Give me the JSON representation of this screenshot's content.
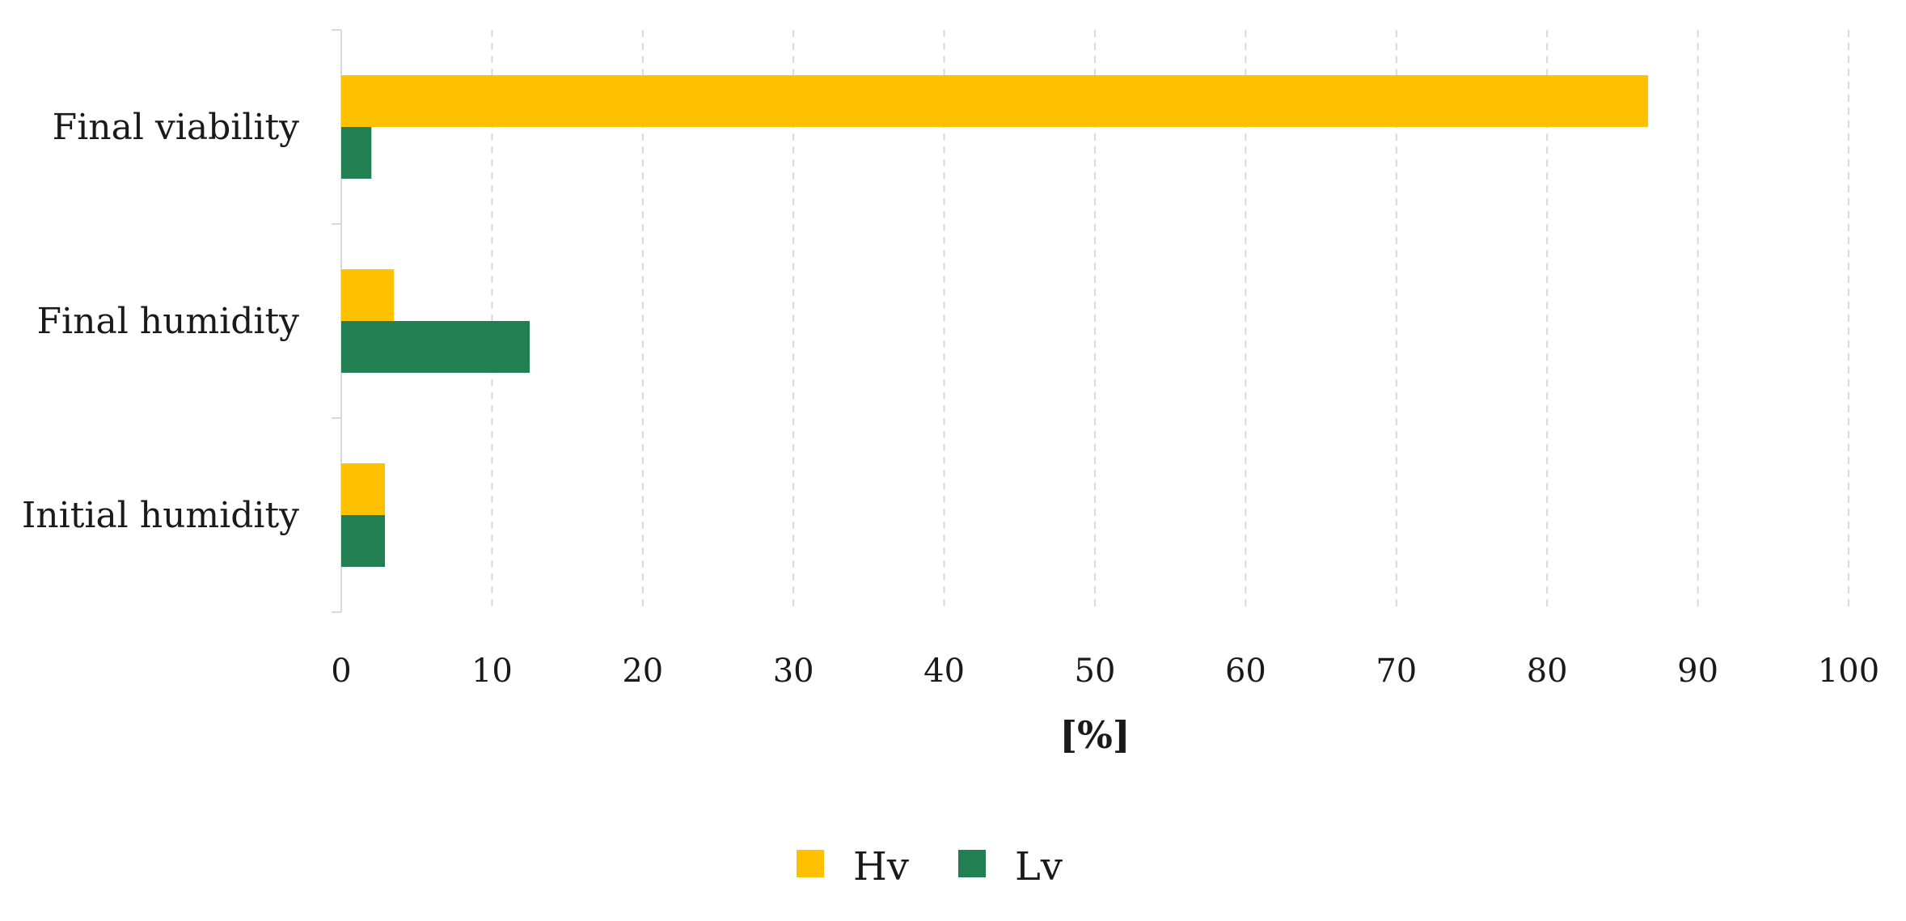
{
  "chart_data": {
    "type": "bar",
    "orientation": "horizontal",
    "categories": [
      "Final viability",
      "Final humidity",
      "Initial humidity"
    ],
    "series": [
      {
        "name": "Hv",
        "color": "#FFC000",
        "values": [
          86.7,
          3.5,
          2.9
        ]
      },
      {
        "name": "Lv",
        "color": "#217F52",
        "values": [
          2.0,
          12.5,
          2.9
        ]
      }
    ],
    "xlabel": "[%]",
    "ylabel": "",
    "xlim": [
      0,
      100
    ],
    "xticks": [
      0,
      10,
      20,
      30,
      40,
      50,
      60,
      70,
      80,
      90,
      100
    ],
    "grid": "vertical dashed",
    "legend_position": "bottom-center"
  }
}
